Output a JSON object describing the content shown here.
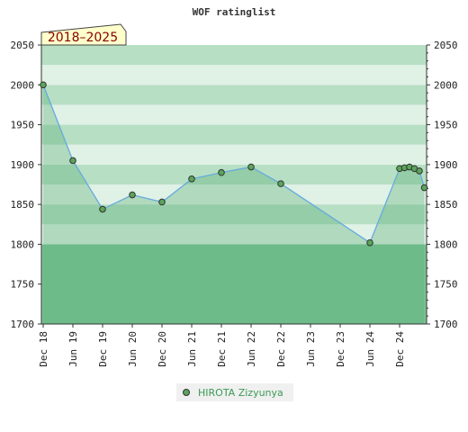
{
  "chart_data": {
    "type": "area",
    "title": "WOF ratinglist",
    "period": "2018–2025",
    "xlabel": "",
    "ylabel": "",
    "ylim": [
      1700,
      2050
    ],
    "y_ticks": [
      1700,
      1750,
      1800,
      1850,
      1900,
      1950,
      2000,
      2050
    ],
    "x_ticks": [
      "Dec 18",
      "Jun 19",
      "Dec 19",
      "Jun 20",
      "Dec 20",
      "Jun 21",
      "Dec 21",
      "Jun 22",
      "Dec 22",
      "Jun 23",
      "Dec 23",
      "Jun 24",
      "Dec 24"
    ],
    "legend_position": "bottom-center",
    "grid": true,
    "series": [
      {
        "name": "HIROTA Zizyunya",
        "color": "#66aadd",
        "marker_color": "#5aa55a",
        "x": [
          "2018-12",
          "2019-06",
          "2019-12",
          "2020-06",
          "2020-12",
          "2021-06",
          "2021-12",
          "2022-06",
          "2022-12",
          "2024-06",
          "2024-12",
          "2025-01",
          "2025-02",
          "2025-03",
          "2025-04",
          "2025-05"
        ],
        "values": [
          2000,
          1905,
          1844,
          1862,
          1853,
          1882,
          1890,
          1897,
          1876,
          1802,
          1895,
          1896,
          1897,
          1895,
          1892,
          1871
        ]
      }
    ],
    "band_colors": {
      "green_strong": "#7cc496",
      "green_mid": "#b7dfc4",
      "green_light": "#e0f1e6"
    }
  }
}
